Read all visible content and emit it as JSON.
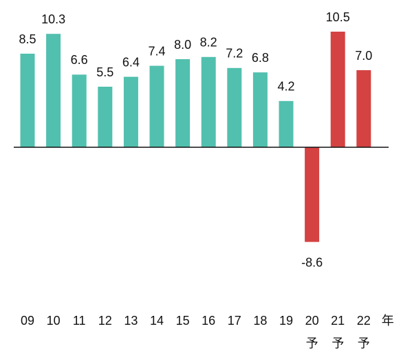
{
  "chart_data": {
    "type": "bar",
    "categories": [
      "09",
      "10",
      "11",
      "12",
      "13",
      "14",
      "15",
      "16",
      "17",
      "18",
      "19",
      "20",
      "21",
      "22"
    ],
    "category_sublabels": [
      null,
      null,
      null,
      null,
      null,
      null,
      null,
      null,
      null,
      null,
      null,
      "予",
      "予",
      "予"
    ],
    "x_unit": "年",
    "values": [
      8.5,
      10.3,
      6.6,
      5.5,
      6.4,
      7.4,
      8,
      8.2,
      7.2,
      6.8,
      4.2,
      -8.6,
      10.5,
      7
    ],
    "value_labels": [
      "8.5",
      "10.3",
      "6.6",
      "5.5",
      "6.4",
      "7.4",
      "8.0",
      "8.2",
      "7.2",
      "6.8",
      "4.2",
      "-8.6",
      "10.5",
      "7.0"
    ],
    "colors": [
      "#52c0ae",
      "#52c0ae",
      "#52c0ae",
      "#52c0ae",
      "#52c0ae",
      "#52c0ae",
      "#52c0ae",
      "#52c0ae",
      "#52c0ae",
      "#52c0ae",
      "#52c0ae",
      "#d44242",
      "#d44242",
      "#d44242"
    ],
    "ylim": [
      -12,
      12
    ]
  }
}
